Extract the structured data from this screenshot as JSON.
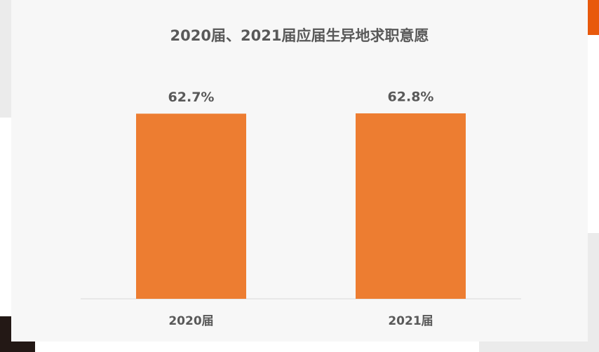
{
  "chart_data": {
    "type": "bar",
    "title": "2020届、2021届应届生异地求职意愿",
    "categories": [
      "2020届",
      "2021届"
    ],
    "values": [
      62.7,
      62.8
    ],
    "value_labels": [
      "62.7%",
      "62.8%"
    ],
    "color": "#ed7d31"
  }
}
